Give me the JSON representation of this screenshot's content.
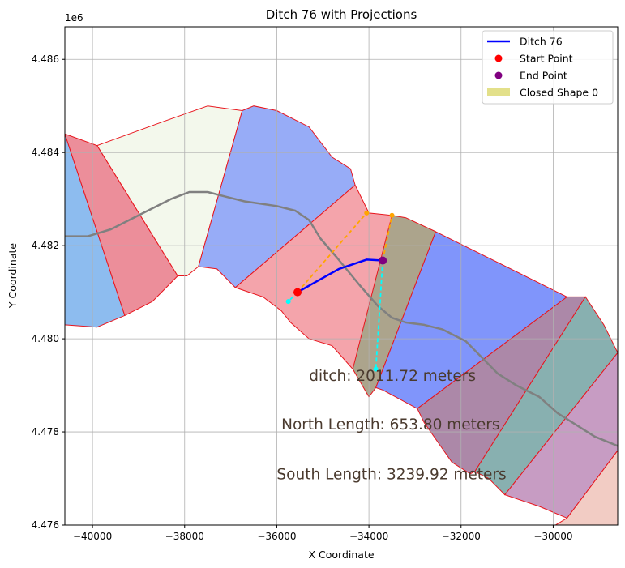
{
  "chart_data": {
    "type": "line",
    "title": "Ditch 76 with Projections",
    "xlabel": "X Coordinate",
    "ylabel": "Y Coordinate",
    "y_offset_label": "1e6",
    "xlim": [
      -40600,
      -28600
    ],
    "ylim": [
      4476000,
      4486700
    ],
    "x_ticks": [
      -40000,
      -38000,
      -36000,
      -34000,
      -32000,
      -30000
    ],
    "x_tick_labels": [
      "−40000",
      "−38000",
      "−36000",
      "−34000",
      "−32000",
      "−30000"
    ],
    "y_ticks": [
      4476000,
      4478000,
      4480000,
      4482000,
      4484000,
      4486000
    ],
    "y_tick_labels": [
      "4.476",
      "4.478",
      "4.480",
      "4.482",
      "4.484",
      "4.486"
    ],
    "grid": true,
    "legend_position": "upper-right",
    "legend": [
      {
        "label": "Ditch 76",
        "kind": "line",
        "color": "#0000ff"
      },
      {
        "label": "Start Point",
        "kind": "point",
        "color": "#ff0000"
      },
      {
        "label": "End Point",
        "kind": "point",
        "color": "#800080"
      },
      {
        "label": "Closed Shape 0",
        "kind": "patch",
        "color": "#e3e08a"
      }
    ],
    "polygons": [
      {
        "fill": "#8dbcef",
        "points": [
          [
            -40600,
            4484400
          ],
          [
            -39300,
            4480500
          ],
          [
            -39900,
            4480250
          ],
          [
            -40600,
            4480300
          ]
        ]
      },
      {
        "fill": "#ec8e9a",
        "points": [
          [
            -40600,
            4484400
          ],
          [
            -39900,
            4484150
          ],
          [
            -38150,
            4481350
          ],
          [
            -38700,
            4480800
          ],
          [
            -39300,
            4480500
          ]
        ]
      },
      {
        "fill": "#f3f8ec",
        "points": [
          [
            -39900,
            4484150
          ],
          [
            -38500,
            4484650
          ],
          [
            -37500,
            4485000
          ],
          [
            -36750,
            4484900
          ],
          [
            -37700,
            4481550
          ],
          [
            -37950,
            4481350
          ],
          [
            -38150,
            4481350
          ]
        ]
      },
      {
        "fill": "#97acf7",
        "points": [
          [
            -36750,
            4484900
          ],
          [
            -36500,
            4485000
          ],
          [
            -36000,
            4484900
          ],
          [
            -35300,
            4484550
          ],
          [
            -34800,
            4483900
          ],
          [
            -34400,
            4483650
          ],
          [
            -34300,
            4483300
          ],
          [
            -36900,
            4481100
          ],
          [
            -37300,
            4481500
          ],
          [
            -37700,
            4481550
          ]
        ]
      },
      {
        "fill": "#f4a4ab",
        "points": [
          [
            -36900,
            4481100
          ],
          [
            -34300,
            4483300
          ],
          [
            -34000,
            4482700
          ],
          [
            -33500,
            4482650
          ],
          [
            -33850,
            4480900
          ],
          [
            -34350,
            4479350
          ],
          [
            -34800,
            4479850
          ],
          [
            -35300,
            4480000
          ],
          [
            -35700,
            4480350
          ],
          [
            -35900,
            4480600
          ],
          [
            -36300,
            4480900
          ]
        ]
      },
      {
        "fill": "#aca48c",
        "points": [
          [
            -33500,
            4482650
          ],
          [
            -33200,
            4482600
          ],
          [
            -32550,
            4482300
          ],
          [
            -33850,
            4478950
          ],
          [
            -34000,
            4478750
          ],
          [
            -34350,
            4479350
          ]
        ]
      },
      {
        "fill": "#8095fb",
        "points": [
          [
            -32550,
            4482300
          ],
          [
            -29700,
            4480900
          ],
          [
            -32950,
            4478500
          ],
          [
            -33700,
            4478900
          ],
          [
            -33850,
            4478950
          ]
        ]
      },
      {
        "fill": "#ac88a8",
        "points": [
          [
            -29700,
            4480900
          ],
          [
            -29300,
            4480900
          ],
          [
            -31700,
            4477150
          ],
          [
            -31800,
            4477100
          ],
          [
            -32200,
            4477350
          ],
          [
            -32800,
            4478200
          ],
          [
            -32950,
            4478500
          ]
        ]
      },
      {
        "fill": "#88b0b0",
        "points": [
          [
            -29300,
            4480900
          ],
          [
            -28900,
            4480300
          ],
          [
            -28600,
            4479700
          ],
          [
            -31050,
            4476650
          ],
          [
            -31400,
            4477000
          ],
          [
            -31700,
            4477150
          ]
        ]
      },
      {
        "fill": "#c79cc3",
        "points": [
          [
            -28600,
            4479700
          ],
          [
            -28600,
            4477600
          ],
          [
            -29700,
            4476150
          ],
          [
            -30300,
            4476400
          ],
          [
            -31050,
            4476650
          ]
        ]
      },
      {
        "fill": "#f2ccc4",
        "points": [
          [
            -28600,
            4477600
          ],
          [
            -28600,
            4476000
          ],
          [
            -29950,
            4476000
          ],
          [
            -29700,
            4476150
          ]
        ]
      }
    ],
    "centerline": [
      [
        -40600,
        4482200
      ],
      [
        -40100,
        4482200
      ],
      [
        -39600,
        4482350
      ],
      [
        -38900,
        4482700
      ],
      [
        -38300,
        4483000
      ],
      [
        -37900,
        4483150
      ],
      [
        -37500,
        4483150
      ],
      [
        -37100,
        4483050
      ],
      [
        -36700,
        4482950
      ],
      [
        -36000,
        4482850
      ],
      [
        -35600,
        4482750
      ],
      [
        -35300,
        4482550
      ],
      [
        -35050,
        4482150
      ],
      [
        -34700,
        4481750
      ],
      [
        -34200,
        4481150
      ],
      [
        -33800,
        4480700
      ],
      [
        -33500,
        4480450
      ],
      [
        -33200,
        4480350
      ],
      [
        -32800,
        4480300
      ],
      [
        -32400,
        4480200
      ],
      [
        -31900,
        4479950
      ],
      [
        -31500,
        4479550
      ],
      [
        -31200,
        4479250
      ],
      [
        -30800,
        4479000
      ],
      [
        -30300,
        4478750
      ],
      [
        -29900,
        4478400
      ],
      [
        -29500,
        4478150
      ],
      [
        -29100,
        4477900
      ],
      [
        -28600,
        4477700
      ]
    ],
    "ditch": {
      "name": "Ditch 76",
      "points": [
        [
          -35550,
          4481000
        ],
        [
          -35100,
          4481250
        ],
        [
          -34650,
          4481500
        ],
        [
          -34050,
          4481700
        ],
        [
          -33700,
          4481680
        ]
      ],
      "start": [
        -35550,
        4481000
      ],
      "end": [
        -33700,
        4481680
      ]
    },
    "projections": [
      {
        "color": "#ffa500",
        "from": [
          -35550,
          4481000
        ],
        "to": [
          -34050,
          4482700
        ]
      },
      {
        "color": "#ffa500",
        "from": [
          -33700,
          4481680
        ],
        "to": [
          -33500,
          4482650
        ]
      },
      {
        "color": "#00ffff",
        "from": [
          -35550,
          4481000
        ],
        "to": [
          -35750,
          4480800
        ]
      },
      {
        "color": "#00ffff",
        "from": [
          -33700,
          4481680
        ],
        "to": [
          -33850,
          4479350
        ]
      }
    ],
    "annotations": [
      {
        "text": "ditch: 2011.72 meters",
        "x": -35300,
        "y": 4479100
      },
      {
        "text": "North Length: 653.80 meters",
        "x": -35900,
        "y": 4478050
      },
      {
        "text": "South Length: 3239.92 meters",
        "x": -36000,
        "y": 4476980
      }
    ]
  }
}
